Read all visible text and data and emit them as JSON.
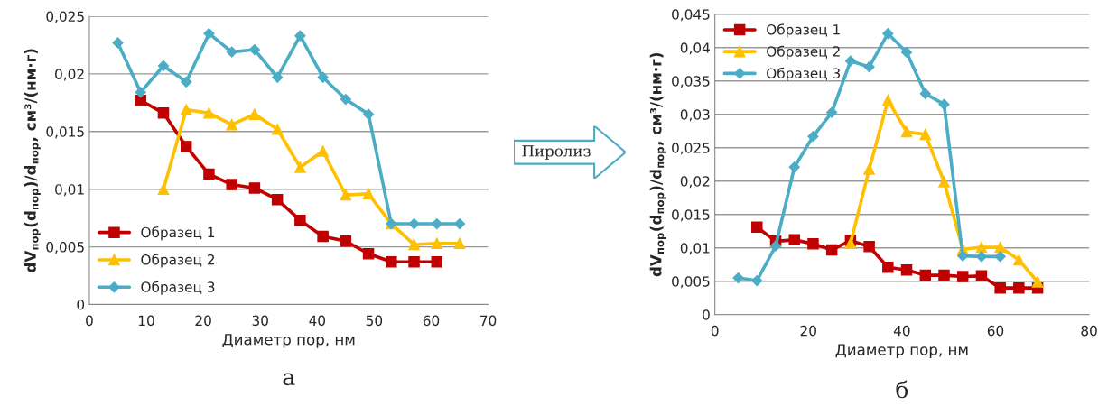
{
  "chart_data": [
    {
      "type": "line",
      "xlabel": "Диаметр пор, нм",
      "ylabel": "dV$_{пор}$(d$_{пор}$)/d$_{пор}$, см³/(нм·г)",
      "xlim": [
        0,
        70
      ],
      "xticks": [
        0,
        10,
        20,
        30,
        40,
        50,
        60,
        70
      ],
      "ylim": [
        0,
        0.025
      ],
      "yticks": [
        0,
        {
          "value": 0.005,
          "label": "0,005"
        },
        {
          "value": 0.01,
          "label": "0,01"
        },
        {
          "value": 0.015,
          "label": "0,015"
        },
        {
          "value": 0.02,
          "label": "0,02"
        },
        {
          "value": 0.025,
          "label": "0,025"
        }
      ],
      "grid": "y",
      "legend": "bottom left",
      "annotations": [
        "а"
      ],
      "series": [
        {
          "name": "Образец 1",
          "color": "#c00000",
          "marker": "square",
          "x": [
            9,
            13,
            17,
            21,
            25,
            29,
            33,
            37,
            41,
            45,
            49,
            53,
            57,
            61
          ],
          "values": [
            0.0177,
            0.0166,
            0.0137,
            0.0113,
            0.0104,
            0.0101,
            0.0091,
            0.0073,
            0.0059,
            0.0055,
            0.0044,
            0.0037,
            0.0037,
            0.0037
          ]
        },
        {
          "name": "Образец 2",
          "color": "#ffc000",
          "marker": "triangle",
          "x": [
            13,
            17,
            21,
            25,
            29,
            33,
            37,
            41,
            45,
            49,
            53,
            57,
            61,
            65
          ],
          "values": [
            0.01,
            0.0169,
            0.0166,
            0.0156,
            0.0165,
            0.0152,
            0.0119,
            0.0133,
            0.0095,
            0.0096,
            0.007,
            0.0052,
            0.0053,
            0.0053
          ]
        },
        {
          "name": "Образец 3",
          "color": "#4bacc6",
          "marker": "diamond",
          "x": [
            5,
            9,
            13,
            17,
            21,
            25,
            29,
            33,
            37,
            41,
            45,
            49,
            53,
            57,
            61,
            65
          ],
          "values": [
            0.0227,
            0.0184,
            0.0207,
            0.0193,
            0.0235,
            0.0219,
            0.0221,
            0.0197,
            0.0233,
            0.0197,
            0.0178,
            0.0165,
            0.007,
            0.007,
            0.007,
            0.007
          ]
        }
      ]
    },
    {
      "type": "other",
      "annotations": [
        "Пиролиз"
      ]
    },
    {
      "type": "line",
      "xlabel": "Диаметр пор, нм",
      "ylabel": "dV$_{пор}$(d$_{пор}$)/d$_{пор}$, см³/(нм·г)",
      "xlim": [
        0,
        80
      ],
      "xticks": [
        0,
        20,
        40,
        60,
        80
      ],
      "ylim": [
        0,
        0.045
      ],
      "yticks": [
        0,
        {
          "value": 0.005,
          "label": "0,005"
        },
        {
          "value": 0.01,
          "label": "0,01"
        },
        {
          "value": 0.015,
          "label": "0,015"
        },
        {
          "value": 0.02,
          "label": "0,02"
        },
        {
          "value": 0.025,
          "label": "0,025"
        },
        {
          "value": 0.03,
          "label": "0,03"
        },
        {
          "value": 0.035,
          "label": "0,035"
        },
        {
          "value": 0.04,
          "label": "0,04"
        },
        {
          "value": 0.045,
          "label": "0,045"
        }
      ],
      "grid": "y",
      "legend": "top left",
      "annotations": [
        "б"
      ],
      "series": [
        {
          "name": "Образец 1",
          "color": "#c00000",
          "marker": "square",
          "x": [
            9,
            13,
            17,
            21,
            25,
            29,
            33,
            37,
            41,
            45,
            49,
            53,
            57,
            61,
            65,
            69
          ],
          "values": [
            0.0131,
            0.011,
            0.0112,
            0.0106,
            0.0097,
            0.0111,
            0.0102,
            0.0071,
            0.0067,
            0.0059,
            0.0059,
            0.0057,
            0.0058,
            0.004,
            0.004,
            0.004
          ]
        },
        {
          "name": "Образец 2",
          "color": "#ffc000",
          "marker": "triangle",
          "x": [
            29,
            33,
            37,
            41,
            45,
            49,
            53,
            57,
            61,
            65,
            69
          ],
          "values": [
            0.0107,
            0.0218,
            0.0321,
            0.0274,
            0.027,
            0.0199,
            0.0098,
            0.0101,
            0.0101,
            0.0082,
            0.0049
          ]
        },
        {
          "name": "Образец 3",
          "color": "#4bacc6",
          "marker": "diamond",
          "x": [
            5,
            9,
            13,
            17,
            21,
            25,
            29,
            33,
            37,
            41,
            45,
            49,
            53,
            57,
            61
          ],
          "values": [
            0.0055,
            0.0051,
            0.0103,
            0.0221,
            0.0267,
            0.0303,
            0.038,
            0.0371,
            0.0421,
            0.0393,
            0.0331,
            0.0315,
            0.0088,
            0.0087,
            0.0087
          ]
        }
      ]
    }
  ]
}
